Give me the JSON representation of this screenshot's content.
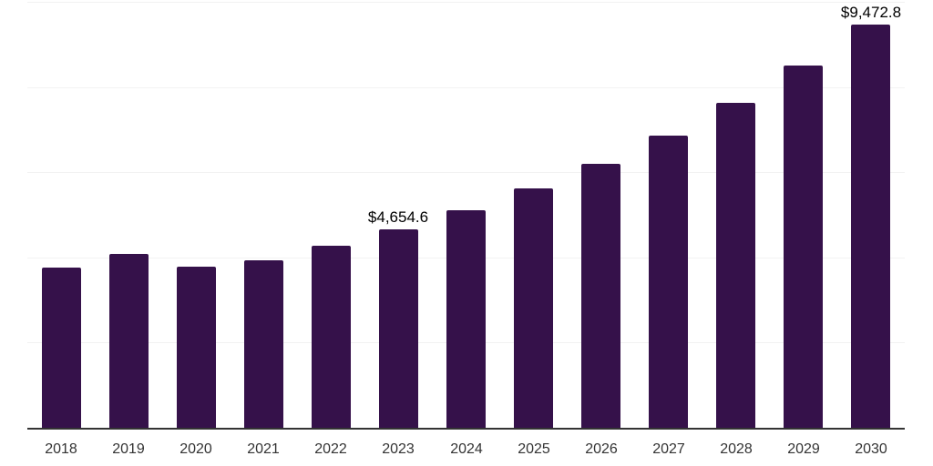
{
  "chart": {
    "background_color": "#ffffff",
    "bar_color": "#35114a",
    "axis_line_color": "#343434",
    "gridline_color": "#f2f2f2",
    "tick_label_color": "#333333",
    "data_label_color": "#000000"
  },
  "chart_data": {
    "type": "bar",
    "title": "",
    "xlabel": "",
    "ylabel": "",
    "categories": [
      "2018",
      "2019",
      "2020",
      "2021",
      "2022",
      "2023",
      "2024",
      "2025",
      "2026",
      "2027",
      "2028",
      "2029",
      "2030"
    ],
    "values": [
      3760,
      4080,
      3780,
      3930,
      4270,
      4654.6,
      5105,
      5620,
      6190,
      6855,
      7625,
      8500,
      9472.8
    ],
    "data_labels": {
      "2023": "$4,654.6",
      "2030": "$9,472.8"
    },
    "ylim": [
      0,
      10000
    ],
    "gridline_step": 2000,
    "grid": true,
    "legend": "none",
    "y_axis_labels_visible": false
  }
}
